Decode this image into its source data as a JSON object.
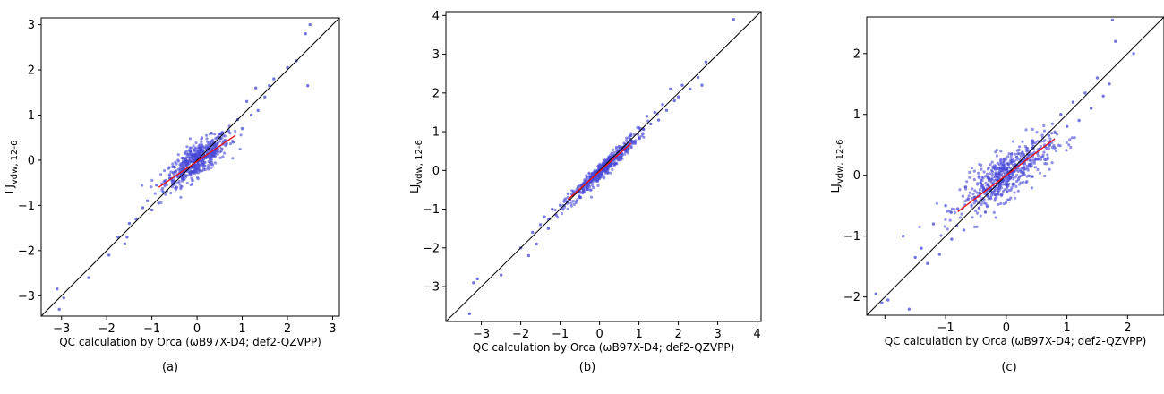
{
  "chart_data": [
    {
      "type": "scatter",
      "panel": "(a)",
      "xlabel": "QC calculation by Orca (ωB97X-D4; def2-QZVPP)",
      "ylabel": "LJ",
      "ylabel_sub": "vdw, 12-6",
      "xlim": [
        -3.45,
        3.15
      ],
      "ylim": [
        -3.45,
        3.15
      ],
      "xticks": [
        -3,
        -2,
        -1,
        0,
        1,
        2,
        3
      ],
      "yticks": [
        -3,
        -2,
        -1,
        0,
        1,
        2,
        3
      ],
      "xtick_labels": [
        "−3",
        "−2",
        "−1",
        "0",
        "1",
        "2",
        "3"
      ],
      "ytick_labels": [
        "−3",
        "−2",
        "−1",
        "0",
        "1",
        "2",
        "3"
      ],
      "diagonal": [
        [
          -3.45,
          -3.45
        ],
        [
          3.15,
          3.15
        ]
      ],
      "fit_line": [
        [
          -0.85,
          -0.6
        ],
        [
          0.85,
          0.55
        ]
      ],
      "points": [
        [
          -3.1,
          -2.85
        ],
        [
          -3.05,
          -3.3
        ],
        [
          -2.95,
          -3.05
        ],
        [
          -2.4,
          -2.6
        ],
        [
          -1.95,
          -2.1
        ],
        [
          -1.75,
          -1.7
        ],
        [
          -1.6,
          -1.85
        ],
        [
          -1.55,
          -1.7
        ],
        [
          -1.5,
          -1.4
        ],
        [
          -1.35,
          -1.3
        ],
        [
          -1.2,
          -1.05
        ],
        [
          -1.1,
          -0.9
        ],
        [
          -1.0,
          -1.1
        ],
        [
          -0.9,
          -0.55
        ],
        [
          -0.85,
          -0.95
        ],
        [
          -0.75,
          -0.7
        ],
        [
          -0.6,
          -0.4
        ],
        [
          -0.5,
          -0.15
        ],
        [
          -0.45,
          -0.6
        ],
        [
          -0.35,
          -0.3
        ],
        [
          -0.3,
          0.05
        ],
        [
          -0.2,
          -0.2
        ],
        [
          -0.15,
          0.2
        ],
        [
          -0.1,
          -0.45
        ],
        [
          0.0,
          0.1
        ],
        [
          0.05,
          -0.1
        ],
        [
          0.1,
          0.3
        ],
        [
          0.2,
          0.05
        ],
        [
          0.3,
          0.35
        ],
        [
          0.4,
          0.15
        ],
        [
          0.5,
          0.5
        ],
        [
          0.55,
          0.25
        ],
        [
          0.7,
          0.65
        ],
        [
          0.8,
          0.4
        ],
        [
          0.9,
          0.9
        ],
        [
          1.0,
          0.7
        ],
        [
          1.1,
          1.3
        ],
        [
          1.2,
          1.0
        ],
        [
          1.3,
          1.6
        ],
        [
          1.35,
          1.1
        ],
        [
          1.5,
          1.4
        ],
        [
          1.6,
          1.65
        ],
        [
          1.7,
          1.8
        ],
        [
          2.0,
          2.05
        ],
        [
          2.2,
          2.2
        ],
        [
          2.4,
          2.8
        ],
        [
          2.45,
          1.65
        ],
        [
          2.5,
          3.0
        ]
      ],
      "cluster": {
        "center": [
          0.0,
          0.0
        ],
        "spread_x": 0.35,
        "spread_y": 0.28,
        "count": 520,
        "corr": 0.78
      }
    },
    {
      "type": "scatter",
      "panel": "(b)",
      "xlabel": "QC calculation by Orca (ωB97X-D4; def2-QZVPP)",
      "ylabel": "LJ",
      "ylabel_sub": "vdw, 12-6",
      "xlim": [
        -3.9,
        4.1
      ],
      "ylim": [
        -3.9,
        4.1
      ],
      "xticks": [
        -3,
        -2,
        -1,
        0,
        1,
        2,
        3,
        4
      ],
      "yticks": [
        -3,
        -2,
        -1,
        0,
        1,
        2,
        3,
        4
      ],
      "xtick_labels": [
        "−3",
        "−2",
        "−1",
        "0",
        "1",
        "2",
        "3",
        "4"
      ],
      "ytick_labels": [
        "−3",
        "−2",
        "−1",
        "0",
        "1",
        "2",
        "3",
        "4"
      ],
      "diagonal": [
        [
          -3.9,
          -3.9
        ],
        [
          4.1,
          4.1
        ]
      ],
      "fit_line": [
        [
          -0.8,
          -0.75
        ],
        [
          0.8,
          0.7
        ]
      ],
      "points": [
        [
          -3.3,
          -3.7
        ],
        [
          -3.2,
          -2.9
        ],
        [
          -3.1,
          -2.8
        ],
        [
          -2.5,
          -2.7
        ],
        [
          -2.0,
          -2.0
        ],
        [
          -1.8,
          -2.2
        ],
        [
          -1.7,
          -1.6
        ],
        [
          -1.6,
          -1.9
        ],
        [
          -1.5,
          -1.4
        ],
        [
          -1.4,
          -1.2
        ],
        [
          -1.3,
          -1.5
        ],
        [
          -1.2,
          -1.0
        ],
        [
          -1.1,
          -1.15
        ],
        [
          -1.0,
          -0.9
        ],
        [
          -0.9,
          -0.8
        ],
        [
          -0.8,
          -0.6
        ],
        [
          -0.6,
          -0.55
        ],
        [
          0.6,
          0.6
        ],
        [
          0.8,
          0.9
        ],
        [
          0.9,
          0.7
        ],
        [
          1.0,
          1.1
        ],
        [
          1.1,
          0.95
        ],
        [
          1.2,
          1.4
        ],
        [
          1.3,
          1.2
        ],
        [
          1.4,
          1.5
        ],
        [
          1.5,
          1.3
        ],
        [
          1.6,
          1.7
        ],
        [
          1.7,
          1.55
        ],
        [
          1.8,
          2.1
        ],
        [
          1.9,
          1.8
        ],
        [
          2.0,
          1.9
        ],
        [
          2.1,
          2.2
        ],
        [
          2.3,
          2.1
        ],
        [
          2.5,
          2.4
        ],
        [
          2.6,
          2.2
        ],
        [
          2.7,
          2.8
        ],
        [
          3.4,
          3.9
        ]
      ],
      "cluster": {
        "center": [
          0.05,
          0.0
        ],
        "spread_x": 0.45,
        "spread_y": 0.45,
        "count": 480,
        "corr": 0.97
      }
    },
    {
      "type": "scatter",
      "panel": "(c)",
      "xlabel": "QC calculation by Orca (ωB97X-D4; def2-QZVPP)",
      "ylabel": "LJ",
      "ylabel_sub": "vdw, 12-6",
      "xlim": [
        -2.3,
        2.6
      ],
      "ylim": [
        -2.3,
        2.6
      ],
      "xticks": [
        -2,
        -1,
        0,
        1,
        2
      ],
      "yticks": [
        -2,
        -1,
        0,
        1,
        2
      ],
      "xtick_labels": [
        "",
        "−1",
        "0",
        "1",
        "2"
      ],
      "ytick_labels": [
        "−2",
        "−1",
        "0",
        "1",
        "2"
      ],
      "diagonal": [
        [
          -2.3,
          -2.3
        ],
        [
          2.6,
          2.6
        ]
      ],
      "fit_line": [
        [
          -0.8,
          -0.6
        ],
        [
          0.8,
          0.6
        ]
      ],
      "points": [
        [
          -2.15,
          -1.95
        ],
        [
          -2.05,
          -2.1
        ],
        [
          -1.95,
          -2.05
        ],
        [
          -1.7,
          -1.0
        ],
        [
          -1.6,
          -2.2
        ],
        [
          -1.5,
          -1.35
        ],
        [
          -1.4,
          -1.2
        ],
        [
          -1.3,
          -1.45
        ],
        [
          -1.2,
          -0.8
        ],
        [
          -1.1,
          -1.3
        ],
        [
          -1.0,
          -0.5
        ],
        [
          -0.9,
          -1.05
        ],
        [
          -0.8,
          -0.55
        ],
        [
          -0.7,
          -0.9
        ],
        [
          0.7,
          0.65
        ],
        [
          0.8,
          0.45
        ],
        [
          0.9,
          1.0
        ],
        [
          1.0,
          0.8
        ],
        [
          1.1,
          1.2
        ],
        [
          1.2,
          0.9
        ],
        [
          1.3,
          1.35
        ],
        [
          1.4,
          1.1
        ],
        [
          1.5,
          1.6
        ],
        [
          1.6,
          1.3
        ],
        [
          1.7,
          1.5
        ],
        [
          1.75,
          2.55
        ],
        [
          1.8,
          2.2
        ],
        [
          2.1,
          2.0
        ]
      ],
      "cluster": {
        "center": [
          0.0,
          0.0
        ],
        "spread_x": 0.38,
        "spread_y": 0.3,
        "count": 560,
        "corr": 0.78
      }
    }
  ]
}
